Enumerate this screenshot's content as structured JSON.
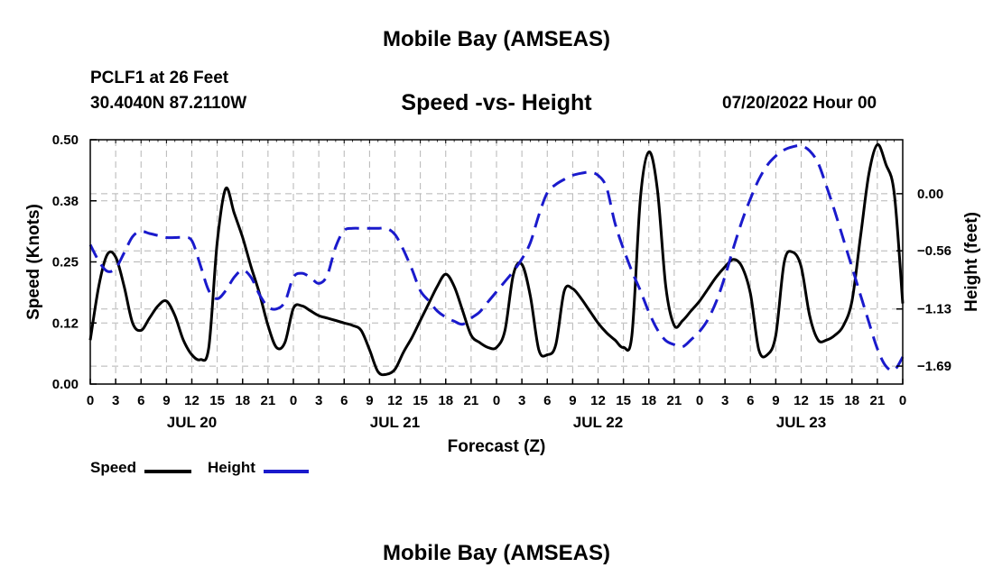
{
  "header": {
    "main_title": "Mobile Bay (AMSEAS)",
    "station": "PCLF1 at 26 Feet",
    "coords": "30.4040N  87.2110W",
    "chart_title": "Speed -vs- Height",
    "run_time": "07/20/2022 Hour 00"
  },
  "footer": {
    "title": "Mobile Bay (AMSEAS)"
  },
  "legend": {
    "speed_label": "Speed",
    "height_label": "Height"
  },
  "colors": {
    "speed": "#000000",
    "height": "#1a1acc",
    "grid": "#b5b5b5"
  },
  "chart_data": {
    "type": "line",
    "title": "Speed -vs- Height",
    "xlabel": "Forecast (Z)",
    "ylabel": "Speed (Knots)",
    "y2label": "Height (feet)",
    "xlim": [
      0,
      96
    ],
    "ylim": [
      0,
      0.5
    ],
    "y2lim": [
      -1.866,
      0.529
    ],
    "yticks": [
      0.0,
      0.125,
      0.25,
      0.375,
      0.5
    ],
    "ytick_labels": [
      "0.00",
      "0.12",
      "0.25",
      "0.38",
      "0.50"
    ],
    "y2ticks": [
      -1.69,
      -1.13,
      -0.56,
      0.0
    ],
    "y2tick_labels": [
      "−1.69",
      "−1.13",
      "−0.56",
      "0.00"
    ],
    "xtick_labels": [
      "0",
      "3",
      "6",
      "9",
      "12",
      "15",
      "18",
      "21",
      "0",
      "3",
      "6",
      "9",
      "12",
      "15",
      "18",
      "21",
      "0",
      "3",
      "6",
      "9",
      "12",
      "15",
      "18",
      "21",
      "0",
      "3",
      "6",
      "9",
      "12",
      "15",
      "18",
      "21",
      "0"
    ],
    "day_labels": [
      {
        "label": "JUL 20",
        "at": 12
      },
      {
        "label": "JUL 21",
        "at": 36
      },
      {
        "label": "JUL 22",
        "at": 60
      },
      {
        "label": "JUL 23",
        "at": 84
      }
    ],
    "grid": true,
    "legend_position": "bottom-left",
    "series": [
      {
        "name": "Speed",
        "axis": "left",
        "style": "solid",
        "x": [
          0,
          1,
          2,
          3,
          4,
          5,
          6,
          7,
          8,
          9,
          10,
          11,
          12,
          13,
          14,
          15,
          16,
          17,
          18,
          19,
          20,
          21,
          22,
          23,
          24,
          25,
          26,
          27,
          28,
          29,
          30,
          31,
          32,
          33,
          34,
          35,
          36,
          37,
          38,
          39,
          40,
          41,
          42,
          43,
          44,
          45,
          46,
          47,
          48,
          49,
          50,
          51,
          52,
          53,
          54,
          55,
          56,
          57,
          58,
          59,
          60,
          61,
          62,
          63,
          64,
          65,
          66,
          67,
          68,
          69,
          70,
          71,
          72,
          73,
          74,
          75,
          76,
          77,
          78,
          79,
          80,
          81,
          82,
          83,
          84,
          85,
          86,
          87,
          88,
          89,
          90,
          91,
          92,
          93,
          94,
          95,
          96
        ],
        "values": [
          0.09,
          0.2,
          0.265,
          0.26,
          0.2,
          0.125,
          0.11,
          0.135,
          0.16,
          0.17,
          0.14,
          0.09,
          0.06,
          0.05,
          0.075,
          0.29,
          0.4,
          0.35,
          0.3,
          0.24,
          0.185,
          0.12,
          0.075,
          0.085,
          0.155,
          0.16,
          0.15,
          0.14,
          0.135,
          0.13,
          0.125,
          0.12,
          0.11,
          0.07,
          0.025,
          0.02,
          0.03,
          0.065,
          0.095,
          0.13,
          0.165,
          0.2,
          0.225,
          0.2,
          0.15,
          0.1,
          0.085,
          0.075,
          0.075,
          0.11,
          0.225,
          0.245,
          0.18,
          0.07,
          0.06,
          0.08,
          0.19,
          0.195,
          0.175,
          0.15,
          0.125,
          0.105,
          0.09,
          0.075,
          0.1,
          0.38,
          0.475,
          0.4,
          0.2,
          0.12,
          0.13,
          0.15,
          0.17,
          0.195,
          0.22,
          0.24,
          0.255,
          0.24,
          0.185,
          0.07,
          0.06,
          0.1,
          0.25,
          0.27,
          0.24,
          0.14,
          0.09,
          0.09,
          0.1,
          0.12,
          0.17,
          0.3,
          0.43,
          0.49,
          0.45,
          0.39,
          0.165
        ]
      },
      {
        "name": "Height",
        "axis": "right",
        "style": "dashed",
        "x": [
          0,
          1,
          2,
          3,
          4,
          5,
          6,
          7,
          8,
          9,
          10,
          11,
          12,
          13,
          14,
          15,
          16,
          17,
          18,
          19,
          20,
          21,
          22,
          23,
          24,
          25,
          26,
          27,
          28,
          29,
          30,
          31,
          32,
          33,
          34,
          35,
          36,
          37,
          38,
          39,
          40,
          41,
          42,
          43,
          44,
          45,
          46,
          47,
          48,
          49,
          50,
          51,
          52,
          53,
          54,
          55,
          56,
          57,
          58,
          59,
          60,
          61,
          62,
          63,
          64,
          65,
          66,
          67,
          68,
          69,
          70,
          71,
          72,
          73,
          74,
          75,
          76,
          77,
          78,
          79,
          80,
          81,
          82,
          83,
          84,
          85,
          86,
          87,
          88,
          89,
          90,
          91,
          92,
          93,
          94,
          95,
          96
        ],
        "values": [
          -0.5,
          -0.66,
          -0.76,
          -0.73,
          -0.58,
          -0.42,
          -0.37,
          -0.39,
          -0.41,
          -0.43,
          -0.43,
          -0.43,
          -0.46,
          -0.7,
          -0.95,
          -1.03,
          -0.95,
          -0.82,
          -0.75,
          -0.82,
          -0.99,
          -1.11,
          -1.13,
          -1.06,
          -0.82,
          -0.78,
          -0.82,
          -0.88,
          -0.8,
          -0.52,
          -0.36,
          -0.34,
          -0.34,
          -0.34,
          -0.34,
          -0.34,
          -0.4,
          -0.55,
          -0.74,
          -0.95,
          -1.05,
          -1.15,
          -1.21,
          -1.25,
          -1.28,
          -1.22,
          -1.16,
          -1.06,
          -0.96,
          -0.86,
          -0.76,
          -0.64,
          -0.48,
          -0.21,
          0.01,
          0.09,
          0.14,
          0.18,
          0.2,
          0.21,
          0.18,
          0.06,
          -0.29,
          -0.54,
          -0.76,
          -0.95,
          -1.16,
          -1.33,
          -1.44,
          -1.48,
          -1.5,
          -1.43,
          -1.35,
          -1.23,
          -1.05,
          -0.81,
          -0.53,
          -0.27,
          -0.05,
          0.14,
          0.28,
          0.37,
          0.43,
          0.46,
          0.47,
          0.42,
          0.3,
          0.07,
          -0.18,
          -0.45,
          -0.72,
          -0.99,
          -1.26,
          -1.52,
          -1.69,
          -1.73,
          -1.6
        ]
      }
    ]
  }
}
